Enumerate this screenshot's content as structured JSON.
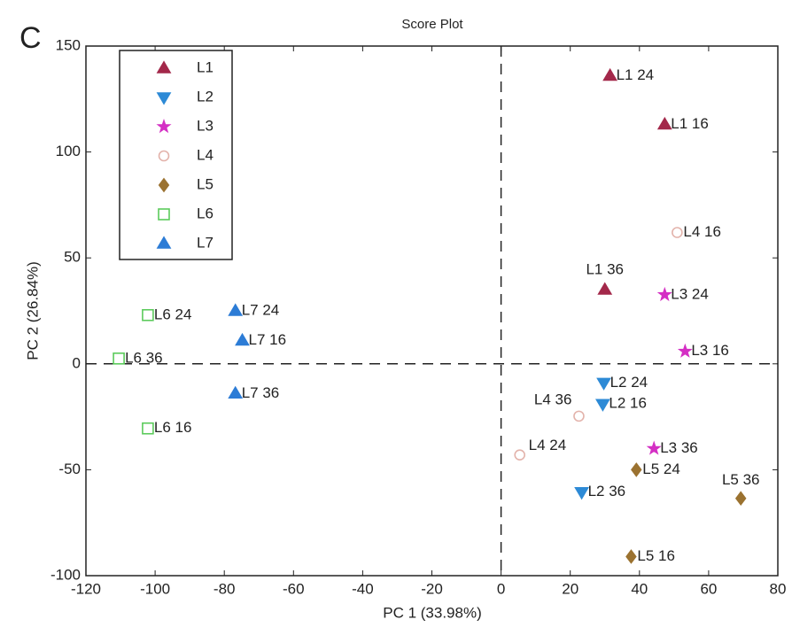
{
  "chart_data": {
    "type": "scatter",
    "panel_label": "C",
    "title": "Score Plot",
    "x_label": "PC 1 (33.98%)",
    "y_label": "PC 2 (26.84%)",
    "xlim": [
      -120,
      80
    ],
    "xticks": [
      -120,
      -100,
      -80,
      -60,
      -40,
      -20,
      0,
      20,
      40,
      60,
      80
    ],
    "ylim": [
      -100,
      150
    ],
    "yticks": [
      -100,
      -50,
      0,
      50,
      100,
      150
    ],
    "legend": "upper left",
    "series": [
      {
        "name": "L1",
        "color": "#a3284a",
        "marker": "triangle-up",
        "filled": true,
        "x": [
          31.5,
          47.3,
          30
        ],
        "values": [
          136,
          113,
          35
        ],
        "point_labels": [
          "L1 24",
          "L1 16",
          "L1 36"
        ]
      },
      {
        "name": "L2",
        "color": "#2d8ad6",
        "marker": "triangle-down",
        "filled": true,
        "x": [
          29.7,
          29.4,
          23.3
        ],
        "values": [
          -9,
          -19,
          -60.6
        ],
        "point_labels": [
          "L2 24",
          "L2 16",
          "L2 36"
        ]
      },
      {
        "name": "L3",
        "color": "#d42fc4",
        "marker": "star",
        "filled": true,
        "x": [
          47.3,
          53.2,
          44.2
        ],
        "values": [
          32.6,
          5.9,
          -40
        ],
        "point_labels": [
          "L3 24",
          "L3 16",
          "L3 36"
        ]
      },
      {
        "name": "L4",
        "color": "#e3b3ab",
        "marker": "circle",
        "filled": false,
        "x": [
          50.9,
          22.5,
          5.4
        ],
        "values": [
          62,
          -24.7,
          -43
        ],
        "point_labels": [
          "L4 16",
          "L4 36",
          "L4 24"
        ]
      },
      {
        "name": "L5",
        "color": "#9b7230",
        "marker": "diamond",
        "filled": true,
        "x": [
          39.1,
          69.3,
          37.6
        ],
        "values": [
          -50,
          -63.5,
          -91
        ],
        "point_labels": [
          "L5 24",
          "L5 36",
          "L5 16"
        ]
      },
      {
        "name": "L6",
        "color": "#5ccb5c",
        "marker": "square",
        "filled": false,
        "x": [
          -102.1,
          -110.5,
          -102.1
        ],
        "values": [
          23,
          2.5,
          -30.5
        ],
        "point_labels": [
          "L6 24",
          "L6 36",
          "L6 16"
        ]
      },
      {
        "name": "L7",
        "color": "#2c7cd6",
        "marker": "triangle-up",
        "filled": true,
        "x": [
          -76.8,
          -74.8,
          -76.8
        ],
        "values": [
          25,
          11,
          -14
        ],
        "point_labels": [
          "L7 24",
          "L7 16",
          "L7 36"
        ]
      }
    ]
  }
}
